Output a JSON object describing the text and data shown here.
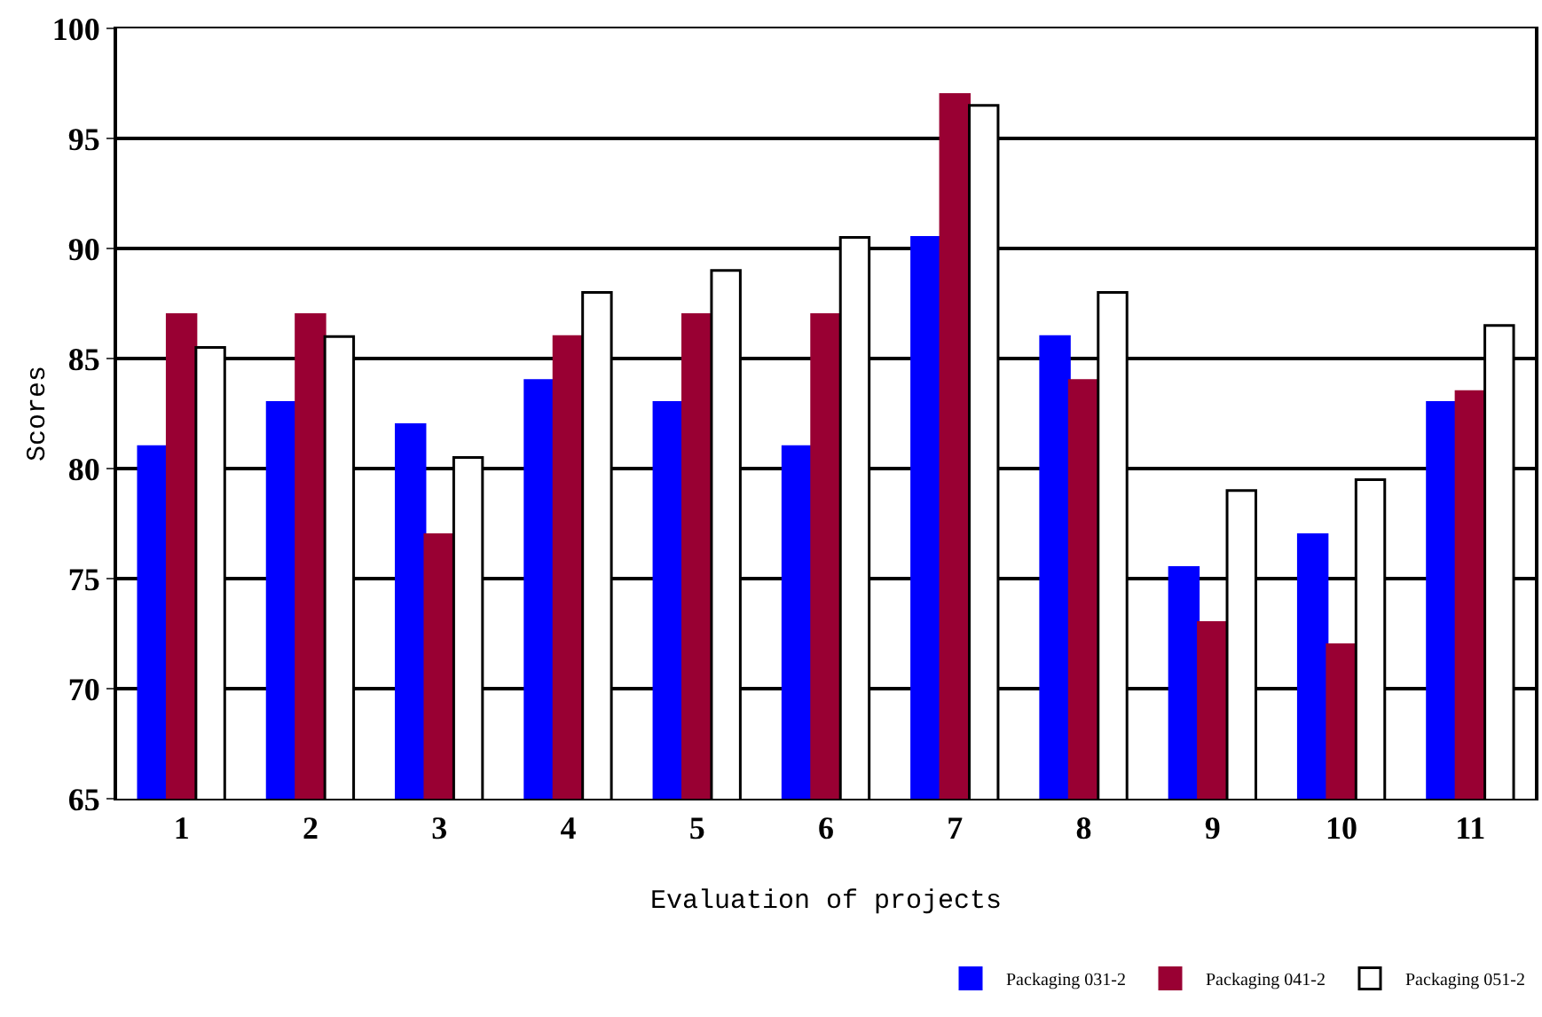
{
  "chart_data": {
    "type": "bar",
    "xlabel": "Evaluation of projects",
    "ylabel": "Scores",
    "categories": [
      "1",
      "2",
      "3",
      "4",
      "5",
      "6",
      "7",
      "8",
      "9",
      "10",
      "11"
    ],
    "series": [
      {
        "name": "Packaging 031-2",
        "color": "#0000ff",
        "values": [
          81,
          83,
          82,
          84,
          83,
          81,
          90.5,
          86,
          75.5,
          77,
          83
        ]
      },
      {
        "name": "Packaging 041-2",
        "color": "#990033",
        "values": [
          87,
          87,
          77,
          86,
          87,
          87,
          97,
          84,
          73,
          72,
          83.5
        ]
      },
      {
        "name": "Packaging 051-2",
        "color": "#ffffff",
        "values": [
          85.5,
          86,
          80.5,
          88,
          89,
          90.5,
          96.5,
          88,
          79,
          79.5,
          86.5
        ]
      }
    ],
    "ylim": [
      65,
      100
    ],
    "yticks": [
      65,
      70,
      75,
      80,
      85,
      90,
      95,
      100
    ],
    "grid": "y",
    "legend": "bottom right"
  }
}
